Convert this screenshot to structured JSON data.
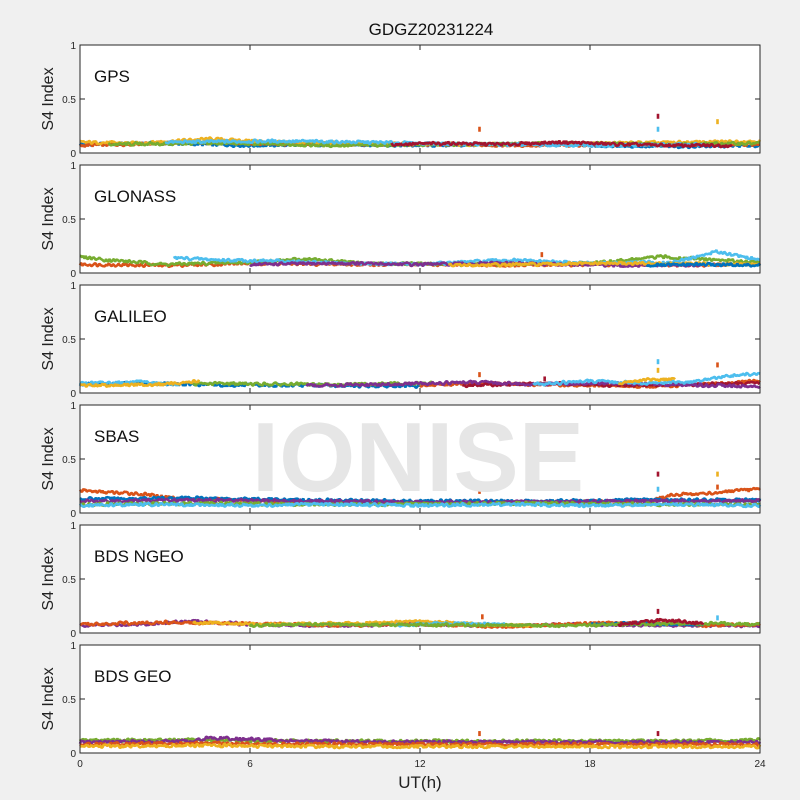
{
  "figure": {
    "title": "GDGZ20231224",
    "watermark": "IONISE",
    "xlabel": "UT(h)",
    "background": "#f0f0f0",
    "axes_background": "#ffffff",
    "watermark_color": "#e6e6e6"
  },
  "chart_data": {
    "type": "scatter",
    "title": "GDGZ20231224",
    "xlabel": "UT(h)",
    "ylabel": "S4 Index",
    "xlim": [
      0,
      24
    ],
    "ylim": [
      0,
      1
    ],
    "xticks": [
      0,
      6,
      12,
      18,
      24
    ],
    "yticks": [
      0,
      0.5,
      1
    ],
    "ytick_labels": [
      "0",
      "0.5",
      "1"
    ],
    "grid": false,
    "legend": "none",
    "series_colors": [
      "#0072bd",
      "#d95319",
      "#edb120",
      "#7e2f8e",
      "#77ac30",
      "#4dbeee",
      "#a2142f"
    ],
    "panels": [
      {
        "label": "GPS",
        "tracks": [
          {
            "color": "#0072bd",
            "x": [
              0,
              3,
              6,
              9,
              12,
              15,
              18,
              21,
              24
            ],
            "y": [
              0.08,
              0.09,
              0.07,
              0.08,
              0.07,
              0.08,
              0.07,
              0.06,
              0.07
            ]
          },
          {
            "color": "#d95319",
            "x": [
              0,
              4,
              8,
              12,
              16,
              20,
              24
            ],
            "y": [
              0.07,
              0.1,
              0.08,
              0.08,
              0.07,
              0.08,
              0.08
            ]
          },
          {
            "color": "#edb120",
            "x": [
              0,
              2,
              4.5,
              7,
              10,
              14,
              18,
              22,
              24
            ],
            "y": [
              0.1,
              0.09,
              0.13,
              0.1,
              0.09,
              0.08,
              0.09,
              0.1,
              0.11
            ]
          },
          {
            "color": "#77ac30",
            "x": [
              1,
              5,
              9,
              13,
              17,
              21,
              24
            ],
            "y": [
              0.08,
              0.09,
              0.07,
              0.08,
              0.09,
              0.08,
              0.09
            ]
          },
          {
            "color": "#4dbeee",
            "x": [
              3,
              7,
              10,
              14,
              18,
              22
            ],
            "y": [
              0.1,
              0.11,
              0.1,
              0.08,
              0.07,
              0.08
            ]
          },
          {
            "color": "#a2142f",
            "x": [
              11,
              13,
              15,
              17,
              19,
              21,
              23
            ],
            "y": [
              0.08,
              0.09,
              0.08,
              0.1,
              0.08,
              0.07,
              0.07
            ]
          }
        ],
        "spikes": [
          {
            "x": 14.1,
            "y": 0.22
          },
          {
            "x": 20.4,
            "y": 0.34
          },
          {
            "x": 20.4,
            "y": 0.22
          },
          {
            "x": 22.5,
            "y": 0.29
          }
        ]
      },
      {
        "label": "GLONASS",
        "tracks": [
          {
            "color": "#d95319",
            "x": [
              0,
              3,
              6,
              9,
              12,
              15,
              18,
              21,
              24
            ],
            "y": [
              0.08,
              0.07,
              0.09,
              0.08,
              0.08,
              0.07,
              0.08,
              0.07,
              0.08
            ]
          },
          {
            "color": "#77ac30",
            "x": [
              0,
              1,
              3,
              6,
              8,
              10,
              14,
              18,
              20.5,
              24
            ],
            "y": [
              0.15,
              0.12,
              0.08,
              0.1,
              0.13,
              0.09,
              0.08,
              0.09,
              0.15,
              0.1
            ]
          },
          {
            "color": "#4dbeee",
            "x": [
              3.3,
              5,
              7,
              9,
              12,
              15,
              18,
              21,
              22.5,
              24
            ],
            "y": [
              0.14,
              0.12,
              0.11,
              0.09,
              0.08,
              0.12,
              0.09,
              0.1,
              0.2,
              0.12
            ]
          },
          {
            "color": "#7e2f8e",
            "x": [
              6,
              9,
              12,
              15,
              19,
              23
            ],
            "y": [
              0.08,
              0.09,
              0.08,
              0.09,
              0.07,
              0.08
            ]
          },
          {
            "color": "#edb120",
            "x": [
              13,
              16,
              19,
              24
            ],
            "y": [
              0.07,
              0.08,
              0.09,
              0.08
            ]
          },
          {
            "color": "#0072bd",
            "x": [
              20,
              22,
              24
            ],
            "y": [
              0.07,
              0.08,
              0.07
            ]
          }
        ],
        "spikes": [
          {
            "x": 16.3,
            "y": 0.17
          }
        ]
      },
      {
        "label": "GALILEO",
        "tracks": [
          {
            "color": "#0072bd",
            "x": [
              0,
              2,
              4,
              6,
              9,
              12
            ],
            "y": [
              0.08,
              0.09,
              0.08,
              0.07,
              0.07,
              0.06
            ]
          },
          {
            "color": "#4dbeee",
            "x": [
              0,
              2,
              3.5
            ],
            "y": [
              0.09,
              0.1,
              0.08
            ]
          },
          {
            "color": "#77ac30",
            "x": [
              4,
              5,
              7,
              9,
              12.5
            ],
            "y": [
              0.08,
              0.09,
              0.08,
              0.08,
              0.09
            ]
          },
          {
            "color": "#edb120",
            "x": [
              0,
              3,
              4.2
            ],
            "y": [
              0.07,
              0.08,
              0.11
            ]
          },
          {
            "color": "#d95319",
            "x": [
              12,
              14,
              16,
              18,
              20,
              22,
              24
            ],
            "y": [
              0.07,
              0.09,
              0.08,
              0.07,
              0.06,
              0.08,
              0.11
            ]
          },
          {
            "color": "#a2142f",
            "x": [
              13.5,
              15,
              17,
              19,
              22,
              24
            ],
            "y": [
              0.07,
              0.08,
              0.09,
              0.07,
              0.08,
              0.09
            ]
          },
          {
            "color": "#7e2f8e",
            "x": [
              8,
              11,
              14,
              16,
              19,
              24
            ],
            "y": [
              0.07,
              0.08,
              0.1,
              0.08,
              0.09,
              0.06
            ]
          },
          {
            "color": "#4dbeee",
            "x": [
              16,
              18,
              20,
              21.5,
              23,
              24
            ],
            "y": [
              0.08,
              0.11,
              0.09,
              0.1,
              0.16,
              0.18
            ]
          },
          {
            "color": "#edb120",
            "x": [
              19,
              20,
              21
            ],
            "y": [
              0.09,
              0.12,
              0.13
            ]
          }
        ],
        "spikes": [
          {
            "x": 14.1,
            "y": 0.17
          },
          {
            "x": 16.4,
            "y": 0.13
          },
          {
            "x": 20.4,
            "y": 0.29
          },
          {
            "x": 20.4,
            "y": 0.21
          },
          {
            "x": 22.5,
            "y": 0.26
          }
        ]
      },
      {
        "label": "SBAS",
        "tracks": [
          {
            "color": "#d95319",
            "x": [
              0,
              1,
              2,
              3,
              4,
              6,
              8,
              12,
              16,
              20,
              21,
              22,
              23,
              24
            ],
            "y": [
              0.21,
              0.19,
              0.18,
              0.15,
              0.13,
              0.12,
              0.1,
              0.09,
              0.1,
              0.11,
              0.17,
              0.18,
              0.2,
              0.22
            ]
          },
          {
            "color": "#0072bd",
            "x": [
              0,
              4,
              8,
              12,
              16,
              20,
              24
            ],
            "y": [
              0.13,
              0.14,
              0.12,
              0.11,
              0.11,
              0.12,
              0.12
            ]
          },
          {
            "color": "#7e2f8e",
            "x": [
              0,
              4,
              8,
              12,
              16,
              20,
              24
            ],
            "y": [
              0.11,
              0.12,
              0.11,
              0.1,
              0.1,
              0.11,
              0.11
            ]
          },
          {
            "color": "#77ac30",
            "x": [
              0,
              4,
              8,
              12,
              16,
              20,
              24
            ],
            "y": [
              0.08,
              0.09,
              0.08,
              0.08,
              0.09,
              0.08,
              0.08
            ]
          },
          {
            "color": "#4dbeee",
            "x": [
              0,
              3,
              6,
              9,
              12,
              15,
              18,
              21,
              24
            ],
            "y": [
              0.07,
              0.08,
              0.07,
              0.08,
              0.07,
              0.08,
              0.07,
              0.08,
              0.07
            ]
          }
        ],
        "spikes": [
          {
            "x": 14.1,
            "y": 0.2
          },
          {
            "x": 20.4,
            "y": 0.36
          },
          {
            "x": 20.4,
            "y": 0.22
          },
          {
            "x": 22.5,
            "y": 0.36
          },
          {
            "x": 22.5,
            "y": 0.24
          }
        ]
      },
      {
        "label": "BDS NGEO",
        "tracks": [
          {
            "color": "#7e2f8e",
            "x": [
              0,
              2,
              4,
              6,
              9,
              12,
              15,
              18,
              21,
              24
            ],
            "y": [
              0.07,
              0.08,
              0.11,
              0.08,
              0.07,
              0.08,
              0.07,
              0.08,
              0.07,
              0.07
            ]
          },
          {
            "color": "#d95319",
            "x": [
              0,
              3,
              6,
              9,
              12,
              15,
              18,
              20,
              22,
              24
            ],
            "y": [
              0.08,
              0.1,
              0.09,
              0.07,
              0.08,
              0.06,
              0.09,
              0.1,
              0.07,
              0.08
            ]
          },
          {
            "color": "#edb120",
            "x": [
              4,
              7,
              10,
              12,
              14,
              16
            ],
            "y": [
              0.1,
              0.08,
              0.09,
              0.11,
              0.08,
              0.07
            ]
          },
          {
            "color": "#4dbeee",
            "x": [
              11,
              13,
              15
            ],
            "y": [
              0.07,
              0.09,
              0.08
            ]
          },
          {
            "color": "#0072bd",
            "x": [
              18,
              20,
              22
            ],
            "y": [
              0.08,
              0.09,
              0.08
            ]
          },
          {
            "color": "#77ac30",
            "x": [
              6,
              8,
              17,
              22,
              24
            ],
            "y": [
              0.07,
              0.08,
              0.07,
              0.09,
              0.08
            ]
          },
          {
            "color": "#a2142f",
            "x": [
              19,
              20.5,
              22
            ],
            "y": [
              0.08,
              0.12,
              0.09
            ]
          }
        ],
        "spikes": [
          {
            "x": 14.2,
            "y": 0.15
          },
          {
            "x": 20.4,
            "y": 0.2
          },
          {
            "x": 22.5,
            "y": 0.14
          }
        ]
      },
      {
        "label": "BDS GEO",
        "tracks": [
          {
            "color": "#77ac30",
            "x": [
              0,
              4,
              8,
              12,
              16,
              20,
              24
            ],
            "y": [
              0.12,
              0.12,
              0.11,
              0.11,
              0.11,
              0.11,
              0.12
            ]
          },
          {
            "color": "#7e2f8e",
            "x": [
              0,
              4,
              4.5,
              8,
              12,
              16,
              20,
              24
            ],
            "y": [
              0.1,
              0.11,
              0.14,
              0.11,
              0.1,
              0.1,
              0.1,
              0.1
            ]
          },
          {
            "color": "#d95319",
            "x": [
              0,
              4,
              8,
              12,
              16,
              20,
              24
            ],
            "y": [
              0.08,
              0.09,
              0.08,
              0.08,
              0.08,
              0.08,
              0.08
            ]
          },
          {
            "color": "#edb120",
            "x": [
              0,
              4,
              8,
              12,
              16,
              20,
              24
            ],
            "y": [
              0.06,
              0.07,
              0.06,
              0.06,
              0.06,
              0.06,
              0.06
            ]
          }
        ],
        "spikes": [
          {
            "x": 14.1,
            "y": 0.18
          },
          {
            "x": 20.4,
            "y": 0.18
          }
        ]
      }
    ]
  }
}
